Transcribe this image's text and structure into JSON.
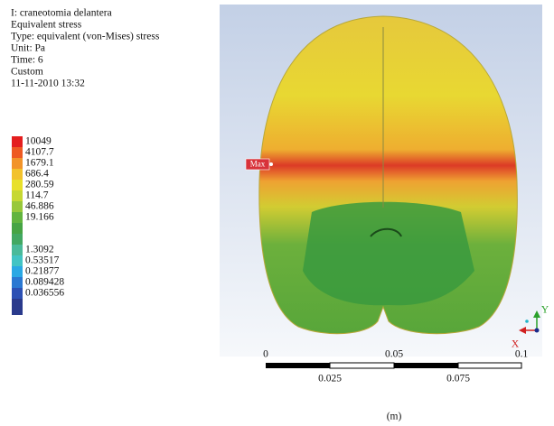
{
  "header": {
    "lines": [
      "I: craneotomia delantera",
      "Equivalent stress",
      "Type: equivalent (von-Mises) stress",
      "Unit: Pa",
      "Time: 6",
      "Custom",
      "11-11-2010 13:32"
    ]
  },
  "legend": {
    "labels": [
      "10049",
      "4107.7",
      "1679.1",
      "686.4",
      "280.59",
      "114.7",
      "46.886",
      "19.166",
      "1.3092",
      "0.53517",
      "0.21877",
      "0.089428",
      "0.036556"
    ]
  },
  "probe": {
    "label": "Max"
  },
  "scale_bar": {
    "top_labels": [
      "0",
      "0.05",
      "0.1"
    ],
    "bottom_labels": [
      "0.025",
      "0.075"
    ],
    "unit": "(m)"
  },
  "triad": {
    "y": "Y",
    "x": "X"
  }
}
